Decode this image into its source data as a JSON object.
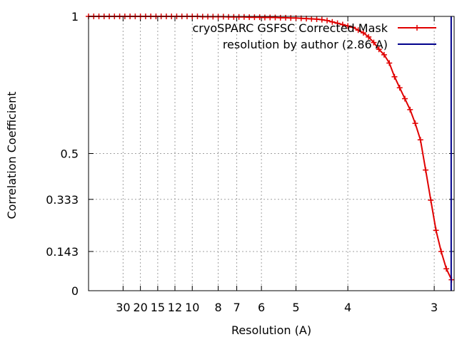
{
  "chart_data": {
    "type": "line",
    "title": "",
    "xlabel": "Resolution (A)",
    "ylabel": "Correlation Coefficient",
    "x_axis_quantity": "spatial frequency (1/A)",
    "xlim_inverse_angstrom": [
      0.0,
      0.3525
    ],
    "ylim": [
      0,
      1
    ],
    "grid": true,
    "legend_position": "top-right",
    "x_ticks": [
      {
        "label": "30",
        "freq": 0.0333
      },
      {
        "label": "20",
        "freq": 0.05
      },
      {
        "label": "15",
        "freq": 0.0667
      },
      {
        "label": "12",
        "freq": 0.0833
      },
      {
        "label": "10",
        "freq": 0.1
      },
      {
        "label": "8",
        "freq": 0.125
      },
      {
        "label": "7",
        "freq": 0.1429
      },
      {
        "label": "6",
        "freq": 0.1667
      },
      {
        "label": "5",
        "freq": 0.2
      },
      {
        "label": "4",
        "freq": 0.25
      },
      {
        "label": "3",
        "freq": 0.3333
      }
    ],
    "y_ticks": [
      {
        "label": "0",
        "value": 0
      },
      {
        "label": "0.143",
        "value": 0.143
      },
      {
        "label": "0.333",
        "value": 0.333
      },
      {
        "label": "0.5",
        "value": 0.5
      },
      {
        "label": "1",
        "value": 1
      }
    ],
    "series": [
      {
        "name": "cryoSPARC GSFSC Corrected Mask",
        "color": "#e00000",
        "style": "line-with-plus-markers",
        "x": [
          0.0,
          0.005,
          0.01,
          0.015,
          0.02,
          0.025,
          0.03,
          0.035,
          0.04,
          0.045,
          0.05,
          0.055,
          0.06,
          0.065,
          0.07,
          0.075,
          0.08,
          0.085,
          0.09,
          0.095,
          0.1,
          0.105,
          0.11,
          0.115,
          0.12,
          0.125,
          0.13,
          0.135,
          0.14,
          0.145,
          0.15,
          0.155,
          0.16,
          0.165,
          0.17,
          0.175,
          0.18,
          0.185,
          0.19,
          0.195,
          0.2,
          0.205,
          0.21,
          0.215,
          0.22,
          0.225,
          0.23,
          0.235,
          0.24,
          0.245,
          0.25,
          0.255,
          0.26,
          0.265,
          0.27,
          0.275,
          0.28,
          0.285,
          0.29,
          0.295,
          0.3,
          0.305,
          0.31,
          0.315,
          0.32,
          0.325,
          0.33,
          0.335,
          0.34,
          0.345,
          0.35
        ],
        "y": [
          1.0,
          1.0,
          1.0,
          1.0,
          1.0,
          1.0,
          1.0,
          1.0,
          1.0,
          1.0,
          1.0,
          1.0,
          1.0,
          1.0,
          1.0,
          1.0,
          1.0,
          1.0,
          1.0,
          1.0,
          1.0,
          1.0,
          0.999,
          0.999,
          0.999,
          0.999,
          0.999,
          0.998,
          0.998,
          0.998,
          0.998,
          0.997,
          0.997,
          0.997,
          0.996,
          0.996,
          0.996,
          0.995,
          0.995,
          0.994,
          0.994,
          0.993,
          0.992,
          0.991,
          0.99,
          0.988,
          0.985,
          0.98,
          0.975,
          0.97,
          0.965,
          0.96,
          0.95,
          0.94,
          0.925,
          0.905,
          0.88,
          0.86,
          0.83,
          0.78,
          0.74,
          0.7,
          0.66,
          0.61,
          0.55,
          0.44,
          0.33,
          0.22,
          0.143,
          0.08,
          0.04
        ]
      },
      {
        "name": "resolution by author (2.86 A)",
        "color": "#00008b",
        "style": "vertical-line",
        "x_resolution_angstrom": 2.86
      }
    ]
  }
}
